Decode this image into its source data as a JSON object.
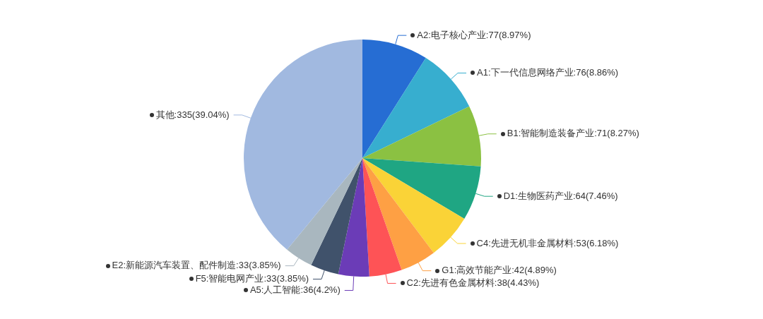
{
  "chart_data": {
    "type": "pie",
    "categories": [
      "A2:电子核心产业",
      "A1:下一代信息网络产业",
      "B1:智能制造装备产业",
      "D1:生物医药产业",
      "C4:先进无机非金属材料",
      "G1:高效节能产业",
      "C2:先进有色金属材料",
      "A5:人工智能",
      "F5:智能电网产业",
      "E2:新能源汽车装置、配件制造",
      "其他"
    ],
    "values": [
      77,
      76,
      71,
      64,
      53,
      42,
      38,
      36,
      33,
      33,
      335
    ],
    "colors": [
      "#266dd3",
      "#37aecf",
      "#8bc142",
      "#1fa683",
      "#fad337",
      "#fea044",
      "#fe5356",
      "#6b3cb7",
      "#40526b",
      "#a9b7bf",
      "#a1b9e0"
    ],
    "value_labels": [
      "77(8.97%)",
      "76(8.86%)",
      "71(8.27%)",
      "64(7.46%)",
      "53(6.18%)",
      "42(4.89%)",
      "38(4.43%)",
      "36(4.2%)",
      "33(3.85%)",
      "33(3.85%)",
      "335(39.04%)"
    ],
    "marker": "circle"
  }
}
